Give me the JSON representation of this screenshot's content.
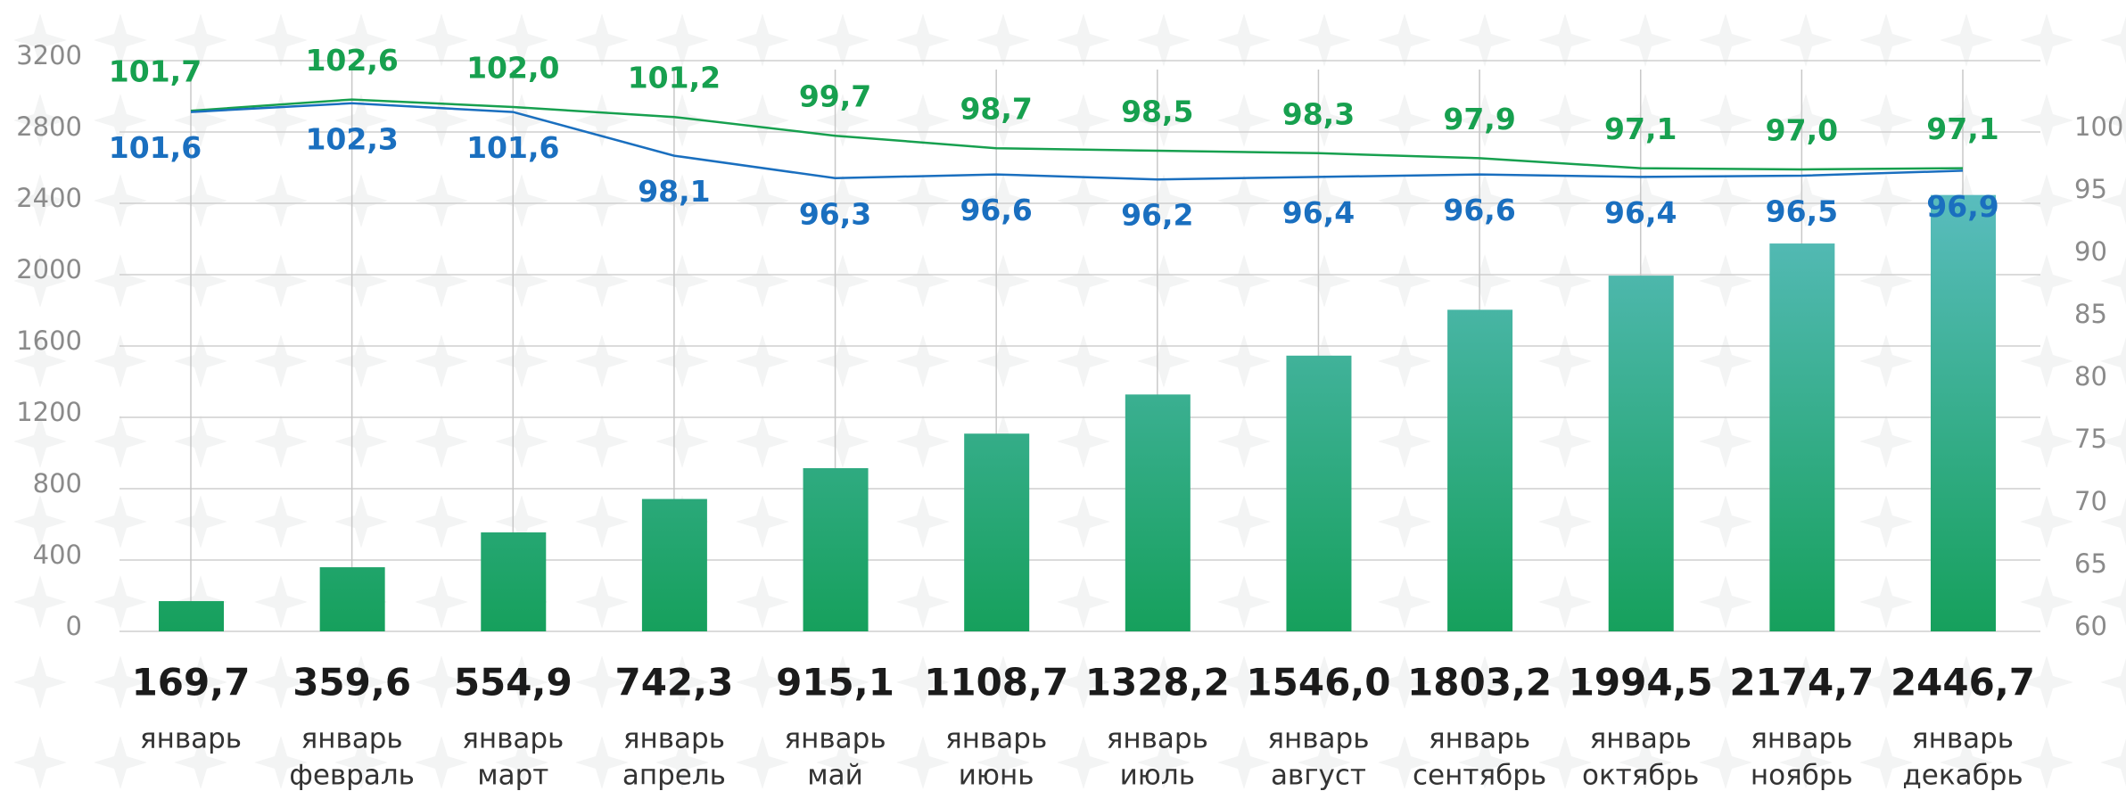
{
  "chart_data": {
    "type": "bar",
    "categories": [
      [
        "январь"
      ],
      [
        "январь",
        "февраль"
      ],
      [
        "январь",
        "март"
      ],
      [
        "январь",
        "апрель"
      ],
      [
        "январь",
        "май"
      ],
      [
        "январь",
        "июнь"
      ],
      [
        "январь",
        "июль"
      ],
      [
        "январь",
        "август"
      ],
      [
        "январь",
        "сентябрь"
      ],
      [
        "январь",
        "октябрь"
      ],
      [
        "январь",
        "ноябрь"
      ],
      [
        "январь",
        "декабрь"
      ]
    ],
    "values": [
      169.7,
      359.6,
      554.9,
      742.3,
      915.1,
      1108.7,
      1328.2,
      1546.0,
      1803.2,
      1994.5,
      2174.7,
      2446.7
    ],
    "value_labels": [
      "169,7",
      "359,6",
      "554,9",
      "742,3",
      "915,1",
      "1108,7",
      "1328,2",
      "1546,0",
      "1803,2",
      "1994,5",
      "2174,7",
      "2446,7"
    ],
    "gradient": [
      "#16a05c",
      "#6ec5dc"
    ],
    "series": [
      {
        "type": "line",
        "axis": "y2",
        "color": "#17a04f",
        "label_side": "above",
        "values": [
          101.7,
          102.6,
          102.0,
          101.2,
          99.7,
          98.7,
          98.5,
          98.3,
          97.9,
          97.1,
          97.0,
          97.1
        ],
        "value_labels": [
          "101,7",
          "102,6",
          "102,0",
          "101,2",
          "99,7",
          "98,7",
          "98,5",
          "98,3",
          "97,9",
          "97,1",
          "97,0",
          "97,1"
        ]
      },
      {
        "type": "line",
        "axis": "y2",
        "color": "#1a6fbf",
        "label_side": "below",
        "values": [
          101.6,
          102.3,
          101.6,
          98.1,
          96.3,
          96.6,
          96.2,
          96.4,
          96.6,
          96.4,
          96.5,
          96.9
        ],
        "value_labels": [
          "101,6",
          "102,3",
          "101,6",
          "98,1",
          "96,3",
          "96,6",
          "96,2",
          "96,4",
          "96,6",
          "96,4",
          "96,5",
          "96,9"
        ]
      }
    ],
    "ylim": [
      0,
      3200
    ],
    "yticks": [
      0,
      400,
      800,
      1200,
      1600,
      2000,
      2400,
      2800,
      3200
    ],
    "y2lim": [
      60,
      105.714
    ],
    "y2ticks": [
      60,
      65,
      70,
      75,
      80,
      85,
      90,
      95,
      100
    ],
    "grid": true
  }
}
